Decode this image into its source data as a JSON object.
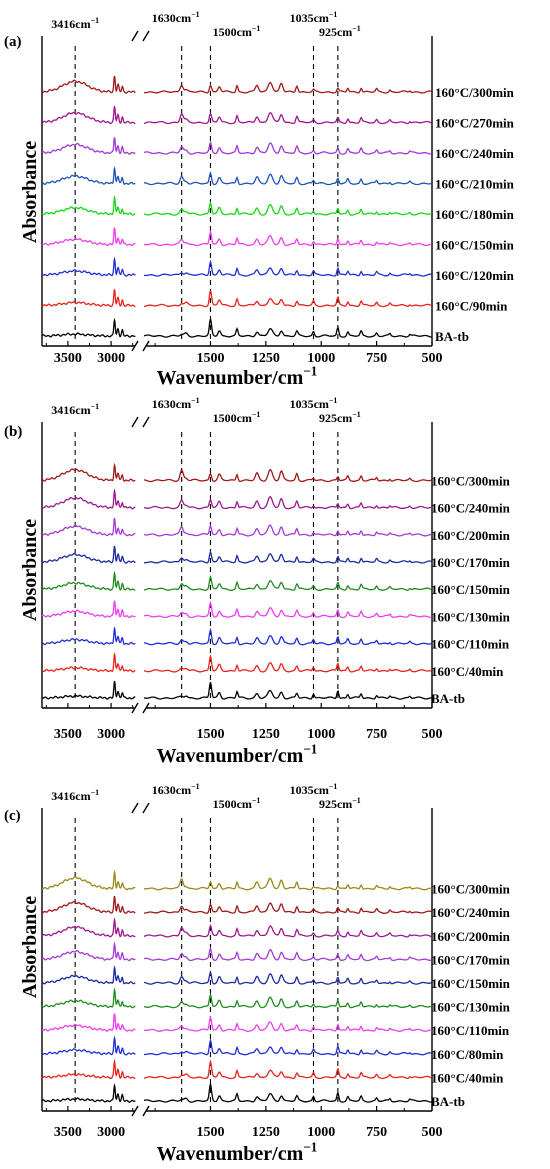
{
  "chart_data": [
    {
      "type": "line",
      "panel_label": "(a)",
      "xlabel_main": "Wavenumber/cm",
      "xlabel_exp": "−1",
      "ylabel": "Absorbance",
      "x_ticks": [
        "3500",
        "3000",
        "1500",
        "1250",
        "1000",
        "750",
        "500"
      ],
      "markers": [
        {
          "main": "3416cm",
          "exp": "−1"
        },
        {
          "main": "1630cm",
          "exp": "−1"
        },
        {
          "main": "1500cm",
          "exp": "−1"
        },
        {
          "main": "1035cm",
          "exp": "−1"
        },
        {
          "main": "925cm",
          "exp": "−1"
        }
      ],
      "series": [
        {
          "name": "BA-tb",
          "color": "#000000"
        },
        {
          "name": "160°C/90min",
          "color": "#e8231c"
        },
        {
          "name": "160°C/120min",
          "color": "#1f2fd6"
        },
        {
          "name": "160°C/150min",
          "color": "#f03cf0"
        },
        {
          "name": "160°C/180min",
          "color": "#16d816"
        },
        {
          "name": "160°C/210min",
          "color": "#1c54b8"
        },
        {
          "name": "160°C/240min",
          "color": "#9f37d8"
        },
        {
          "name": "160°C/270min",
          "color": "#a0148c"
        },
        {
          "name": "160°C/300min",
          "color": "#a01818"
        }
      ]
    },
    {
      "type": "line",
      "panel_label": "(b)",
      "xlabel_main": "Wavenumber/cm",
      "xlabel_exp": "−1",
      "ylabel": "Absorbance",
      "x_ticks": [
        "3500",
        "3000",
        "1500",
        "1250",
        "1000",
        "750",
        "500"
      ],
      "markers": [
        {
          "main": "3416cm",
          "exp": "−1"
        },
        {
          "main": "1630cm",
          "exp": "−1"
        },
        {
          "main": "1500cm",
          "exp": "−1"
        },
        {
          "main": "1035cm",
          "exp": "−1"
        },
        {
          "main": "925cm",
          "exp": "−1"
        }
      ],
      "series": [
        {
          "name": "BA-tb",
          "color": "#000000"
        },
        {
          "name": "160°C/40min",
          "color": "#e8231c"
        },
        {
          "name": "160°C/110min",
          "color": "#1f2fd6"
        },
        {
          "name": "160°C/130min",
          "color": "#f03cf0"
        },
        {
          "name": "160°C/150min",
          "color": "#1f8c1f"
        },
        {
          "name": "160°C/170min",
          "color": "#1c2aa0"
        },
        {
          "name": "160°C/200min",
          "color": "#a43ad8"
        },
        {
          "name": "160°C/240min",
          "color": "#9c1890"
        },
        {
          "name": "160°C/300min",
          "color": "#a01818"
        }
      ]
    },
    {
      "type": "line",
      "panel_label": "(c)",
      "xlabel_main": "Wavenumber/cm",
      "xlabel_exp": "−1",
      "ylabel": "Absorbance",
      "x_ticks": [
        "3500",
        "3000",
        "1500",
        "1250",
        "1000",
        "750",
        "500"
      ],
      "markers": [
        {
          "main": "3416cm",
          "exp": "−1"
        },
        {
          "main": "1630cm",
          "exp": "−1"
        },
        {
          "main": "1500cm",
          "exp": "−1"
        },
        {
          "main": "1035cm",
          "exp": "−1"
        },
        {
          "main": "925cm",
          "exp": "−1"
        }
      ],
      "series": [
        {
          "name": "BA-tb",
          "color": "#000000"
        },
        {
          "name": "160°C/40min",
          "color": "#e8231c"
        },
        {
          "name": "160°C/80min",
          "color": "#1f2fd6"
        },
        {
          "name": "160°C/110min",
          "color": "#f03cf0"
        },
        {
          "name": "160°C/130min",
          "color": "#1f8c1f"
        },
        {
          "name": "160°C/150min",
          "color": "#1c2aa0"
        },
        {
          "name": "160°C/170min",
          "color": "#a43ad8"
        },
        {
          "name": "160°C/200min",
          "color": "#9c1890"
        },
        {
          "name": "160°C/240min",
          "color": "#a01818"
        },
        {
          "name": "160°C/300min",
          "color": "#9a8a18"
        }
      ]
    }
  ]
}
